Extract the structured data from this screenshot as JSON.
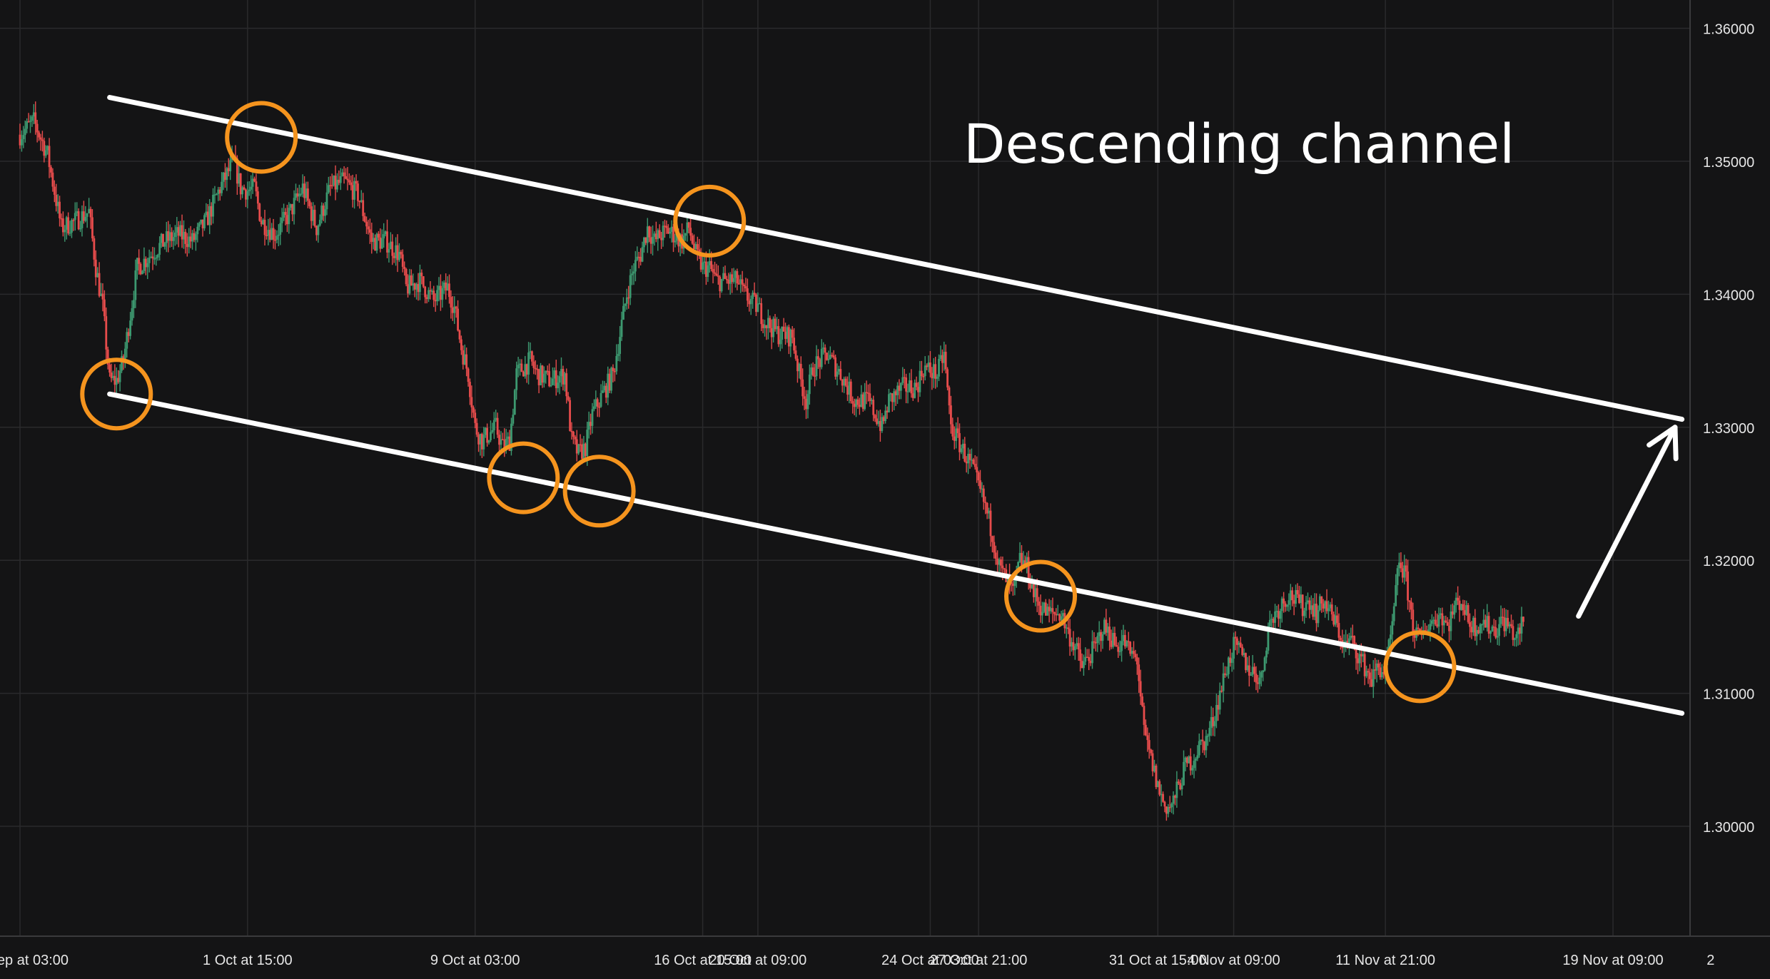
{
  "chart_data": {
    "type": "candlestick",
    "title": "Descending channel",
    "xlabel": "",
    "ylabel": "",
    "ylim": [
      1.29,
      1.36
    ],
    "grid": true,
    "y_ticks": [
      "1.36000",
      "1.35000",
      "1.34000",
      "1.33000",
      "1.32000",
      "1.31000",
      "1.30000"
    ],
    "y_tick_values": [
      1.36,
      1.35,
      1.34,
      1.33,
      1.32,
      1.31,
      1.3
    ],
    "x_ticks": [
      "ep at 03:00",
      "1 Oct at 15:00",
      "9 Oct at 03:00",
      "16 Oct at 15:00",
      "20 Oct at 09:00",
      "24 Oct at 03:00",
      "27 Oct at 21:00",
      "31 Oct at 15:00",
      "4 Nov at 09:00",
      "11 Nov at 21:00",
      "19 Nov at 09:00",
      "2"
    ],
    "price_path": [
      [
        0,
        1.352
      ],
      [
        2,
        1.353
      ],
      [
        4,
        1.3505
      ],
      [
        6,
        1.345
      ],
      [
        8,
        1.3455
      ],
      [
        10,
        1.3462
      ],
      [
        11,
        1.342
      ],
      [
        12,
        1.339
      ],
      [
        13,
        1.3335
      ],
      [
        14,
        1.3335
      ],
      [
        15,
        1.335
      ],
      [
        17,
        1.342
      ],
      [
        19,
        1.343
      ],
      [
        21,
        1.344
      ],
      [
        23,
        1.3445
      ],
      [
        25,
        1.344
      ],
      [
        27,
        1.3455
      ],
      [
        29,
        1.348
      ],
      [
        30,
        1.349
      ],
      [
        31,
        1.35
      ],
      [
        32,
        1.348
      ],
      [
        33,
        1.3478
      ],
      [
        34,
        1.348
      ],
      [
        35,
        1.3455
      ],
      [
        37,
        1.3445
      ],
      [
        39,
        1.346
      ],
      [
        41,
        1.348
      ],
      [
        43,
        1.345
      ],
      [
        45,
        1.348
      ],
      [
        47,
        1.3485
      ],
      [
        49,
        1.3475
      ],
      [
        51,
        1.344
      ],
      [
        53,
        1.344
      ],
      [
        55,
        1.343
      ],
      [
        56,
        1.3405
      ],
      [
        58,
        1.341
      ],
      [
        60,
        1.3395
      ],
      [
        62,
        1.3405
      ],
      [
        63,
        1.339
      ],
      [
        64,
        1.336
      ],
      [
        65,
        1.334
      ],
      [
        66,
        1.33
      ],
      [
        67,
        1.329
      ],
      [
        69,
        1.33
      ],
      [
        70,
        1.3285
      ],
      [
        71,
        1.329
      ],
      [
        72,
        1.334
      ],
      [
        74,
        1.335
      ],
      [
        75,
        1.334
      ],
      [
        77,
        1.3335
      ],
      [
        79,
        1.334
      ],
      [
        80,
        1.329
      ],
      [
        81,
        1.328
      ],
      [
        82,
        1.3285
      ],
      [
        83,
        1.331
      ],
      [
        85,
        1.333
      ],
      [
        86,
        1.334
      ],
      [
        87,
        1.337
      ],
      [
        88,
        1.34
      ],
      [
        89,
        1.342
      ],
      [
        90,
        1.343
      ],
      [
        91,
        1.345
      ],
      [
        92,
        1.344
      ],
      [
        93,
        1.3445
      ],
      [
        94,
        1.3448
      ],
      [
        96,
        1.344
      ],
      [
        97,
        1.345
      ],
      [
        98,
        1.343
      ],
      [
        99,
        1.342
      ],
      [
        100,
        1.342
      ],
      [
        101,
        1.341
      ],
      [
        102,
        1.341
      ],
      [
        104,
        1.341
      ],
      [
        105,
        1.34
      ],
      [
        107,
        1.339
      ],
      [
        108,
        1.338
      ],
      [
        110,
        1.337
      ],
      [
        112,
        1.3368
      ],
      [
        113,
        1.334
      ],
      [
        114,
        1.332
      ],
      [
        115,
        1.3345
      ],
      [
        117,
        1.3355
      ],
      [
        119,
        1.334
      ],
      [
        121,
        1.332
      ],
      [
        123,
        1.332
      ],
      [
        124,
        1.331
      ],
      [
        125,
        1.33
      ],
      [
        126,
        1.332
      ],
      [
        128,
        1.333
      ],
      [
        130,
        1.333
      ],
      [
        131,
        1.3345
      ],
      [
        133,
        1.334
      ],
      [
        134,
        1.3355
      ],
      [
        135,
        1.33
      ],
      [
        136,
        1.329
      ],
      [
        137,
        1.328
      ],
      [
        138,
        1.327
      ],
      [
        140,
        1.324
      ],
      [
        141,
        1.322
      ],
      [
        142,
        1.3195
      ],
      [
        144,
        1.3175
      ],
      [
        145,
        1.32
      ],
      [
        146,
        1.3195
      ],
      [
        147,
        1.3175
      ],
      [
        148,
        1.3165
      ],
      [
        149,
        1.316
      ],
      [
        151,
        1.316
      ],
      [
        152,
        1.3145
      ],
      [
        153,
        1.3135
      ],
      [
        154,
        1.312
      ],
      [
        156,
        1.3135
      ],
      [
        157,
        1.315
      ],
      [
        158,
        1.3145
      ],
      [
        159,
        1.3135
      ],
      [
        160,
        1.314
      ],
      [
        161,
        1.313
      ],
      [
        162,
        1.3125
      ],
      [
        163,
        1.307
      ],
      [
        164,
        1.305
      ],
      [
        165,
        1.303
      ],
      [
        166,
        1.3015
      ],
      [
        167,
        1.3015
      ],
      [
        168,
        1.303
      ],
      [
        169,
        1.3045
      ],
      [
        170,
        1.305
      ],
      [
        171,
        1.306
      ],
      [
        172,
        1.3065
      ],
      [
        173,
        1.308
      ],
      [
        174,
        1.31
      ],
      [
        175,
        1.312
      ],
      [
        176,
        1.3135
      ],
      [
        177,
        1.313
      ],
      [
        178,
        1.312
      ],
      [
        179,
        1.3115
      ],
      [
        180,
        1.311
      ],
      [
        181,
        1.315
      ],
      [
        182,
        1.316
      ],
      [
        184,
        1.3175
      ],
      [
        185,
        1.317
      ],
      [
        186,
        1.3165
      ],
      [
        187,
        1.317
      ],
      [
        188,
        1.316
      ],
      [
        189,
        1.317
      ],
      [
        190,
        1.316
      ],
      [
        191,
        1.315
      ],
      [
        192,
        1.3135
      ],
      [
        193,
        1.314
      ],
      [
        194,
        1.313
      ],
      [
        195,
        1.312
      ],
      [
        196,
        1.311
      ],
      [
        197,
        1.312
      ],
      [
        198,
        1.3115
      ],
      [
        199,
        1.315
      ],
      [
        200,
        1.32
      ],
      [
        201,
        1.3185
      ],
      [
        202,
        1.315
      ],
      [
        203,
        1.314
      ],
      [
        204,
        1.315
      ],
      [
        205,
        1.3155
      ],
      [
        206,
        1.316
      ],
      [
        207,
        1.315
      ],
      [
        208,
        1.3165
      ],
      [
        209,
        1.317
      ],
      [
        210,
        1.3155
      ],
      [
        211,
        1.315
      ],
      [
        212,
        1.3155
      ],
      [
        213,
        1.315
      ],
      [
        214,
        1.3148
      ],
      [
        215,
        1.3155
      ],
      [
        216,
        1.315
      ],
      [
        217,
        1.314
      ],
      [
        218,
        1.3155
      ]
    ],
    "x_domain": [
      0,
      245
    ],
    "tick_positions": [
      0,
      33,
      66,
      99,
      107,
      132,
      139,
      165,
      176,
      198,
      231,
      245
    ],
    "annotations": {
      "lines": [
        {
          "name": "upper-trendline",
          "from": [
            13,
            1.3548
          ],
          "to": [
            241,
            1.3306
          ]
        },
        {
          "name": "lower-trendline",
          "from": [
            13,
            1.3325
          ],
          "to": [
            241,
            1.3085
          ]
        }
      ],
      "arrow": {
        "from": [
          226,
          1.3158
        ],
        "to": [
          240,
          1.33
        ]
      },
      "circles": [
        {
          "x": 14,
          "y": 1.3325
        },
        {
          "x": 35,
          "y": 1.3518
        },
        {
          "x": 73,
          "y": 1.3262
        },
        {
          "x": 84,
          "y": 1.3252
        },
        {
          "x": 100,
          "y": 1.3455
        },
        {
          "x": 148,
          "y": 1.3173
        },
        {
          "x": 203,
          "y": 1.312
        }
      ]
    },
    "colors": {
      "background": "#141415",
      "grid": "#2a2a2c",
      "up": "#3d9970",
      "down": "#e74c4c",
      "annotation": "#f5941e",
      "line": "#ffffff",
      "text": "#e6e6e6"
    }
  }
}
